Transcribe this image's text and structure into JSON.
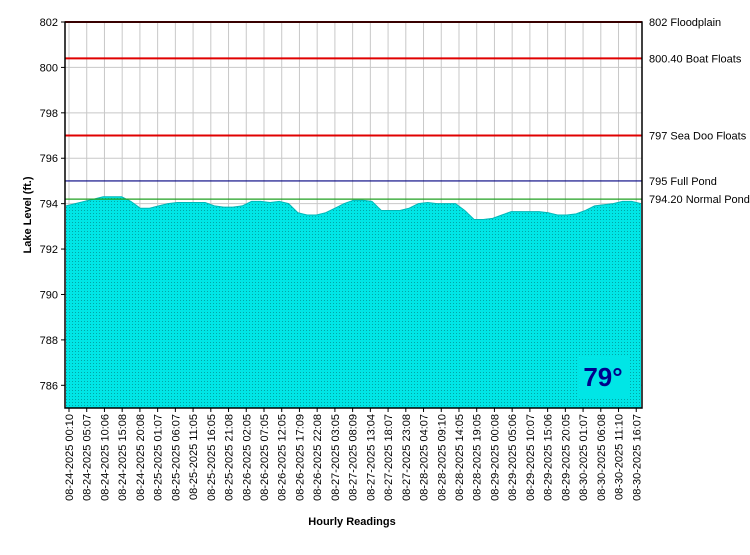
{
  "chart_data": {
    "type": "area",
    "title": "",
    "xlabel": "Hourly Readings",
    "ylabel": "Lake Level (ft.)",
    "ylim": [
      785,
      802
    ],
    "yticks": [
      786,
      788,
      790,
      792,
      794,
      796,
      798,
      800,
      802
    ],
    "grid": true,
    "fill_color": "#00e6e6",
    "x_tick_labels": [
      "08-24-2025 00:10",
      "08-24-2025 05:07",
      "08-24-2025 10:06",
      "08-24-2025 15:08",
      "08-24-2025 20:08",
      "08-25-2025 01:07",
      "08-25-2025 06:07",
      "08-25-2025 11:05",
      "08-25-2025 16:05",
      "08-25-2025 21:08",
      "08-26-2025 02:05",
      "08-26-2025 07:05",
      "08-26-2025 12:05",
      "08-26-2025 17:09",
      "08-26-2025 22:08",
      "08-27-2025 03:05",
      "08-27-2025 08:09",
      "08-27-2025 13:04",
      "08-27-2025 18:07",
      "08-27-2025 23:08",
      "08-28-2025 04:07",
      "08-28-2025 09:10",
      "08-28-2025 14:05",
      "08-28-2025 19:05",
      "08-29-2025 00:08",
      "08-29-2025 05:06",
      "08-29-2025 10:07",
      "08-29-2025 15:06",
      "08-29-2025 20:05",
      "08-30-2025 01:07",
      "08-30-2025 06:08",
      "08-30-2025 11:10",
      "08-30-2025 16:07"
    ],
    "series": [
      {
        "values": [
          793.9,
          794.0,
          794.1,
          794.2,
          794.3,
          794.3,
          794.3,
          794.1,
          793.8,
          793.8,
          793.9,
          794.0,
          794.05,
          794.05,
          794.05,
          794.05,
          793.9,
          793.85,
          793.85,
          793.9,
          794.1,
          794.1,
          794.05,
          794.1,
          794.0,
          793.6,
          793.5,
          793.5,
          793.6,
          793.8,
          794.0,
          794.15,
          794.15,
          794.1,
          793.7,
          793.7,
          793.7,
          793.8,
          794.0,
          794.05,
          794.0,
          794.0,
          794.0,
          793.7,
          793.3,
          793.3,
          793.35,
          793.5,
          793.65,
          793.65,
          793.65,
          793.65,
          793.6,
          793.5,
          793.5,
          793.55,
          793.7,
          793.9,
          793.95,
          794.0,
          794.1,
          794.1,
          794.0
        ]
      }
    ],
    "reference_lines": [
      {
        "value": 802,
        "label": "802 Floodplain",
        "color": "#e00000"
      },
      {
        "value": 800.4,
        "label": "800.40 Boat Floats",
        "color": "#e00000"
      },
      {
        "value": 797,
        "label": "797 Sea Doo Floats",
        "color": "#e00000"
      },
      {
        "value": 795,
        "label": "795 Full Pond",
        "color": "#000080"
      },
      {
        "value": 794.2,
        "label": "794.20 Normal Pond",
        "color": "#22a022"
      }
    ]
  },
  "temperature": "79°"
}
